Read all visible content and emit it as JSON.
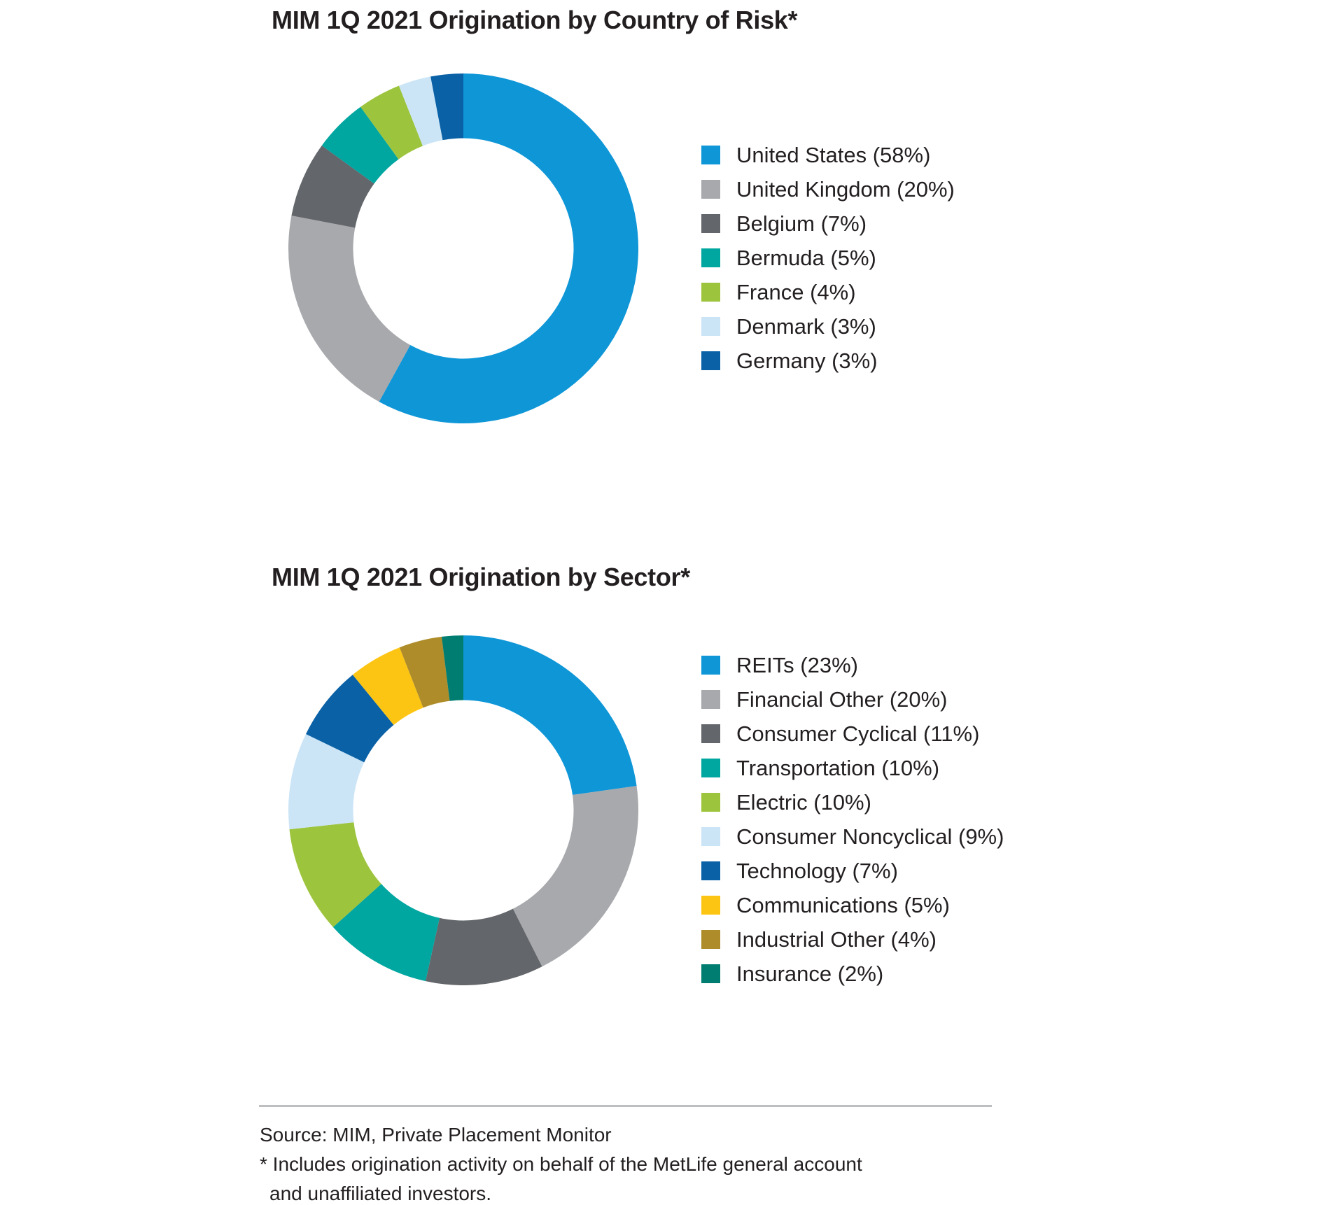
{
  "page": {
    "background": "#FFFFFF",
    "text_color": "#231F20"
  },
  "chart_data": [
    {
      "type": "donut",
      "title": "MIM 1Q 2021 Origination by Country of Risk*",
      "legend_position": "right",
      "inner_radius_ratio": 0.63,
      "start_angle_deg": 0,
      "direction": "clockwise",
      "segments": [
        {
          "label": "United States",
          "pct": 58,
          "color": "#0E96D7"
        },
        {
          "label": "United Kingdom",
          "pct": 20,
          "color": "#A7A9AC"
        },
        {
          "label": "Belgium",
          "pct": 7,
          "color": "#63666A"
        },
        {
          "label": "Bermuda",
          "pct": 5,
          "color": "#00A6A0"
        },
        {
          "label": "France",
          "pct": 4,
          "color": "#9DC43D"
        },
        {
          "label": "Denmark",
          "pct": 3,
          "color": "#CBE5F7"
        },
        {
          "label": "Germany",
          "pct": 3,
          "color": "#0A61A6"
        }
      ]
    },
    {
      "type": "donut",
      "title": "MIM 1Q 2021 Origination by Sector*",
      "legend_position": "right",
      "inner_radius_ratio": 0.63,
      "start_angle_deg": 0,
      "direction": "clockwise",
      "segments": [
        {
          "label": "REITs",
          "pct": 23,
          "color": "#0E96D7"
        },
        {
          "label": "Financial Other",
          "pct": 20,
          "color": "#A7A9AC"
        },
        {
          "label": "Consumer Cyclical",
          "pct": 11,
          "color": "#63666A"
        },
        {
          "label": "Transportation",
          "pct": 10,
          "color": "#00A6A0"
        },
        {
          "label": "Electric",
          "pct": 10,
          "color": "#9DC43D"
        },
        {
          "label": "Consumer Noncyclical",
          "pct": 9,
          "color": "#CBE5F7"
        },
        {
          "label": "Technology",
          "pct": 7,
          "color": "#0A61A6"
        },
        {
          "label": "Communications",
          "pct": 5,
          "color": "#FDC513"
        },
        {
          "label": "Industrial Other",
          "pct": 4,
          "color": "#AE8C2A"
        },
        {
          "label": "Insurance",
          "pct": 2,
          "color": "#007D71"
        }
      ]
    }
  ],
  "footer": {
    "source": "Source: MIM, Private Placement Monitor",
    "footnote_line1": "* Includes origination activity on behalf of the MetLife general account",
    "footnote_line2": "and unaffiliated investors.",
    "divider_color": "#BDBFC1"
  }
}
